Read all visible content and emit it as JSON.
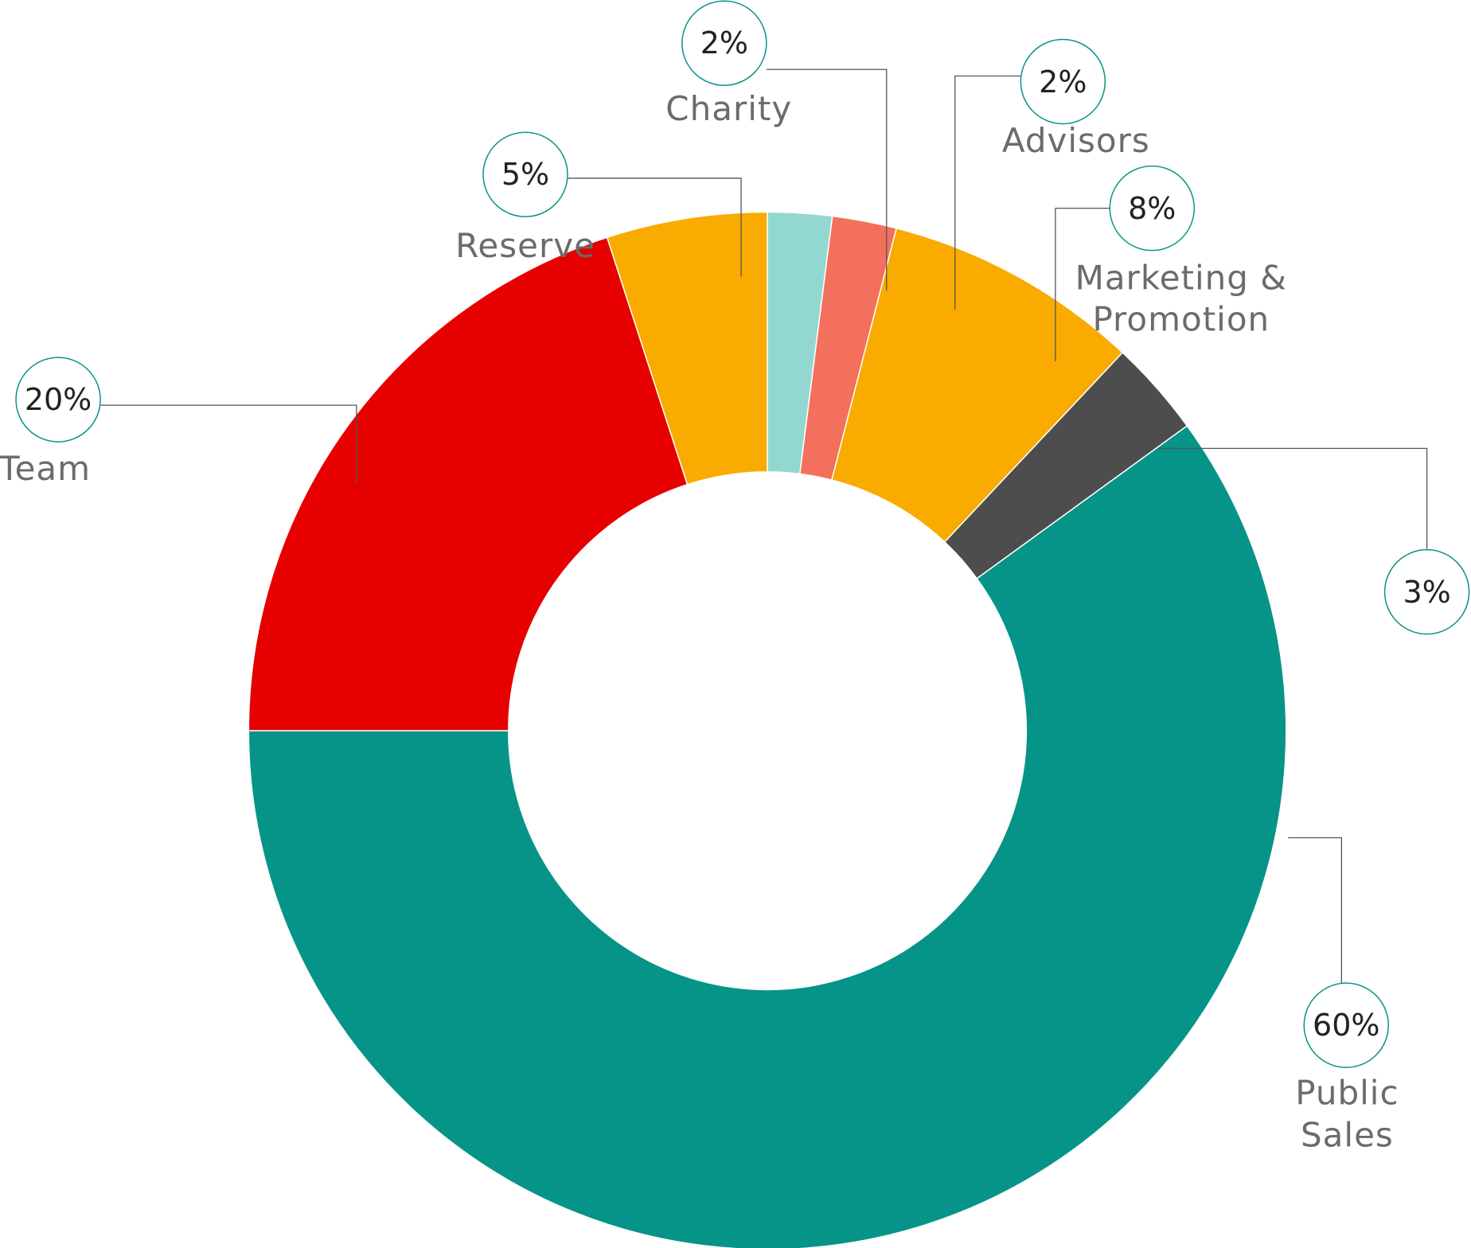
{
  "chart_data": {
    "type": "donut",
    "categories": [
      "Team",
      "Reserve",
      "Charity",
      "Advisors",
      "Marketing & Promotion",
      null,
      "Public Sales"
    ],
    "values": [
      20,
      5,
      2,
      2,
      8,
      3,
      60
    ],
    "value_labels": [
      "20%",
      "5%",
      "2%",
      "2%",
      "8%",
      "3%",
      "60%"
    ],
    "colors": [
      "#e60000",
      "#f9ab00",
      "#93d8d0",
      "#f2705c",
      "#f9ab00",
      "#4d4d4d",
      "#069488"
    ]
  }
}
